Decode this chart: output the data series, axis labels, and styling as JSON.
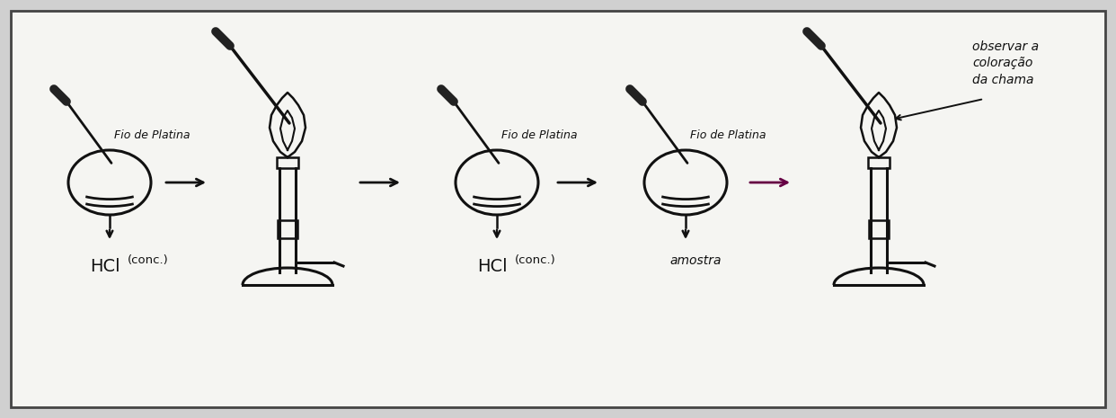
{
  "background_color": "#d8d8d8",
  "border_color": "#444444",
  "line_color": "#111111",
  "text_color": "#111111",
  "fig_bg": "#d0d0d0",
  "inner_bg": "#f5f5f2",
  "labels": {
    "fio_platina": "Fio de Platina",
    "hcl_conc": "HCl",
    "hcl_sub": "(conc.)",
    "amostra": "amostra",
    "observar": "observar a\ncoloração\nda chama"
  },
  "figsize": [
    12.42,
    4.65
  ],
  "dpi": 100
}
